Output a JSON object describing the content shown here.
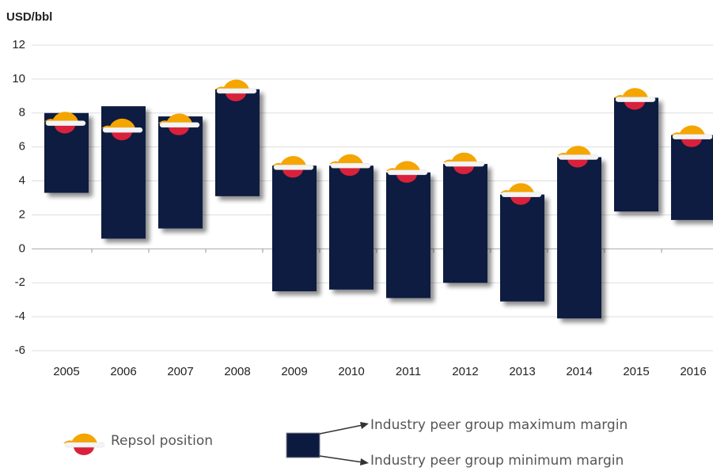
{
  "chart_data": {
    "type": "range_bar",
    "y_label": "USD/bbl",
    "categories": [
      "2005",
      "2006",
      "2007",
      "2008",
      "2009",
      "2010",
      "2011",
      "2012",
      "2013",
      "2014",
      "2015",
      "2016"
    ],
    "series": [
      {
        "name": "Industry peer group maximum margin",
        "color": "#0d1a40",
        "values": [
          8.0,
          8.4,
          7.8,
          9.4,
          4.9,
          4.9,
          4.5,
          5.0,
          3.2,
          5.4,
          8.9,
          6.7
        ]
      },
      {
        "name": "Industry peer group minimum margin",
        "color": "#0d1a40",
        "values": [
          3.3,
          0.6,
          1.2,
          3.1,
          -2.5,
          -2.4,
          -2.9,
          -2.0,
          -3.1,
          -4.1,
          2.2,
          1.7
        ]
      },
      {
        "name": "Repsol position",
        "color": "#f5a500",
        "values": [
          7.4,
          7.0,
          7.3,
          9.3,
          4.8,
          4.9,
          4.5,
          5.0,
          3.2,
          5.4,
          8.8,
          6.6
        ]
      }
    ],
    "ylim": [
      -6,
      12
    ],
    "yticks": [
      -6,
      -4,
      -2,
      0,
      2,
      4,
      6,
      8,
      10,
      12
    ],
    "grid": true
  }
}
